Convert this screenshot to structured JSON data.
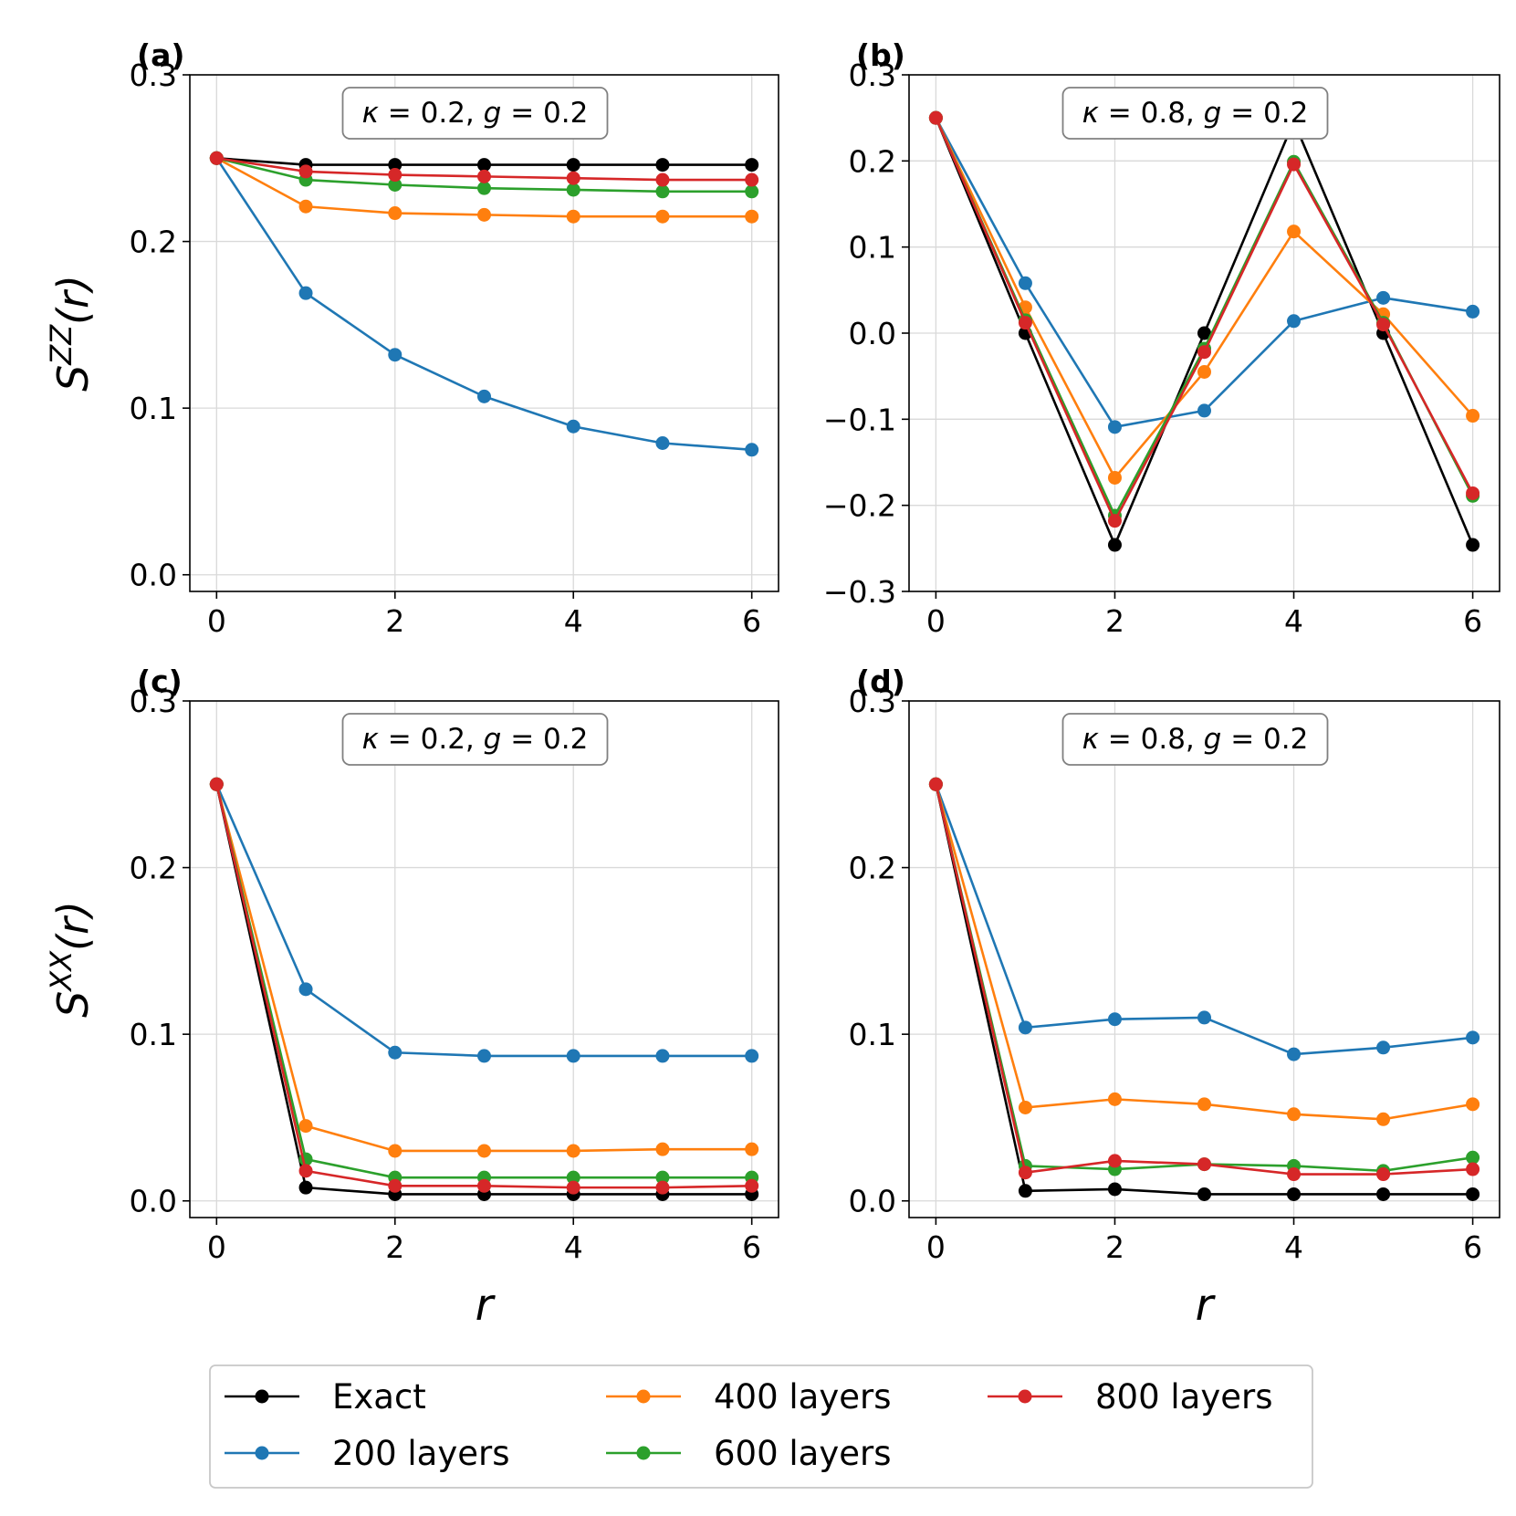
{
  "chart_data": {
    "type": "line",
    "x": [
      0,
      1,
      2,
      3,
      4,
      5,
      6
    ],
    "xlabel": "r",
    "xlim": [
      -0.3,
      6.3
    ],
    "xticks": [
      0,
      2,
      4,
      6
    ],
    "series_meta": [
      {
        "key": "exact",
        "name": "Exact",
        "color": "#000000"
      },
      {
        "key": "l200",
        "name": "200 layers",
        "color": "#1f77b4"
      },
      {
        "key": "l400",
        "name": "400 layers",
        "color": "#ff7f0e"
      },
      {
        "key": "l600",
        "name": "600 layers",
        "color": "#2ca02c"
      },
      {
        "key": "l800",
        "name": "800 layers",
        "color": "#d62728"
      }
    ],
    "panels": [
      {
        "label": "(a)",
        "annotation": {
          "kappa": "κ",
          "kappa_val": "0.2",
          "g": "g",
          "g_val": "0.2"
        },
        "ylabel": {
          "base": "S",
          "sup": "ZZ",
          "arg": "(r)"
        },
        "ylim": [
          -0.01,
          0.3
        ],
        "yticks": [
          "0.0",
          "0.1",
          "0.2",
          "0.3"
        ],
        "series": {
          "exact": [
            0.25,
            0.246,
            0.246,
            0.246,
            0.246,
            0.246,
            0.246
          ],
          "l200": [
            0.25,
            0.169,
            0.132,
            0.107,
            0.089,
            0.079,
            0.075
          ],
          "l400": [
            0.25,
            0.221,
            0.217,
            0.216,
            0.215,
            0.215,
            0.215
          ],
          "l600": [
            0.25,
            0.237,
            0.234,
            0.232,
            0.231,
            0.23,
            0.23
          ],
          "l800": [
            0.25,
            0.242,
            0.24,
            0.239,
            0.238,
            0.237,
            0.237
          ]
        }
      },
      {
        "label": "(b)",
        "annotation": {
          "kappa": "κ",
          "kappa_val": "0.8",
          "g": "g",
          "g_val": "0.2"
        },
        "ylabel": null,
        "ylim": [
          -0.3,
          0.3
        ],
        "yticks": [
          "−0.3",
          "−0.2",
          "−0.1",
          "0.0",
          "0.1",
          "0.2",
          "0.3"
        ],
        "series": {
          "exact": [
            0.25,
            0.0,
            -0.246,
            0.0,
            0.246,
            0.0,
            -0.246
          ],
          "l200": [
            0.25,
            0.058,
            -0.109,
            -0.09,
            0.014,
            0.041,
            0.025
          ],
          "l400": [
            0.25,
            0.03,
            -0.168,
            -0.045,
            0.118,
            0.022,
            -0.096
          ],
          "l600": [
            0.25,
            0.015,
            -0.212,
            -0.018,
            0.199,
            0.012,
            -0.189
          ],
          "l800": [
            0.25,
            0.012,
            -0.218,
            -0.022,
            0.196,
            0.01,
            -0.186
          ]
        }
      },
      {
        "label": "(c)",
        "annotation": {
          "kappa": "κ",
          "kappa_val": "0.2",
          "g": "g",
          "g_val": "0.2"
        },
        "ylabel": {
          "base": "S",
          "sup": "XX",
          "arg": "(r)"
        },
        "ylim": [
          -0.01,
          0.3
        ],
        "yticks": [
          "0.0",
          "0.1",
          "0.2",
          "0.3"
        ],
        "series": {
          "exact": [
            0.25,
            0.008,
            0.004,
            0.004,
            0.004,
            0.004,
            0.004
          ],
          "l200": [
            0.25,
            0.127,
            0.089,
            0.087,
            0.087,
            0.087,
            0.087
          ],
          "l400": [
            0.25,
            0.045,
            0.03,
            0.03,
            0.03,
            0.031,
            0.031
          ],
          "l600": [
            0.25,
            0.025,
            0.014,
            0.014,
            0.014,
            0.014,
            0.014
          ],
          "l800": [
            0.25,
            0.018,
            0.009,
            0.009,
            0.008,
            0.008,
            0.009
          ]
        }
      },
      {
        "label": "(d)",
        "annotation": {
          "kappa": "κ",
          "kappa_val": "0.8",
          "g": "g",
          "g_val": "0.2"
        },
        "ylabel": null,
        "ylim": [
          -0.01,
          0.3
        ],
        "yticks": [
          "0.0",
          "0.1",
          "0.2",
          "0.3"
        ],
        "series": {
          "exact": [
            0.25,
            0.006,
            0.007,
            0.004,
            0.004,
            0.004,
            0.004
          ],
          "l200": [
            0.25,
            0.104,
            0.109,
            0.11,
            0.088,
            0.092,
            0.098
          ],
          "l400": [
            0.25,
            0.056,
            0.061,
            0.058,
            0.052,
            0.049,
            0.058
          ],
          "l600": [
            0.25,
            0.021,
            0.019,
            0.022,
            0.021,
            0.018,
            0.026
          ],
          "l800": [
            0.25,
            0.017,
            0.024,
            0.022,
            0.016,
            0.016,
            0.019
          ]
        }
      }
    ],
    "legend": {
      "position": "bottom-center",
      "entries": [
        "Exact",
        "400 layers",
        "800 layers",
        "200 layers",
        "600 layers"
      ]
    }
  }
}
